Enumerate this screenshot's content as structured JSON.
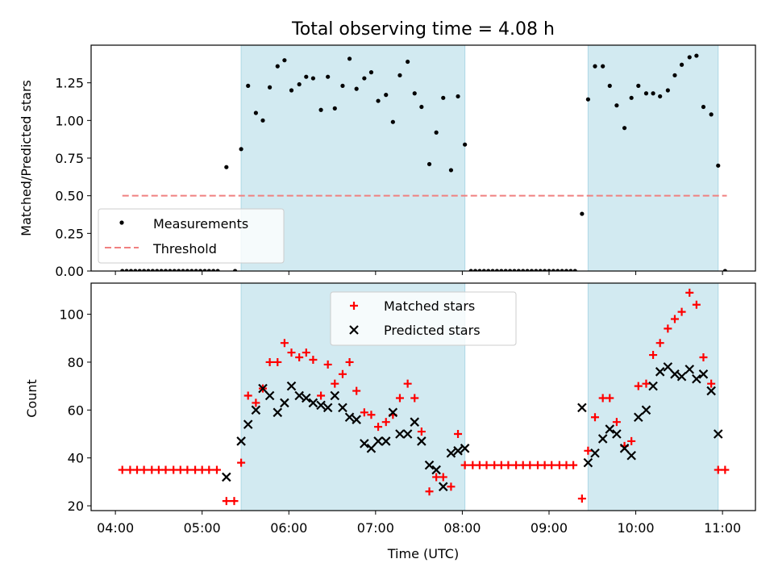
{
  "figure": {
    "title": "Total observing time = 4.08 h",
    "xlabel": "Time (UTC)",
    "x_ticks": [
      "04:00",
      "05:00",
      "06:00",
      "07:00",
      "08:00",
      "09:00",
      "10:00",
      "11:00"
    ],
    "shaded_color": "#add8e6"
  },
  "chart_data": [
    {
      "type": "scatter",
      "name": "top-panel",
      "x_unit": "hours UTC",
      "xlim": [
        3.72,
        11.38
      ],
      "ylim": [
        0,
        1.5
      ],
      "ylabel": "Matched/Predicted stars",
      "y_ticks": [
        "0.00",
        "0.25",
        "0.50",
        "0.75",
        "1.00",
        "1.25"
      ],
      "y_tick_values": [
        0,
        0.25,
        0.5,
        0.75,
        1.0,
        1.25
      ],
      "shaded_intervals": [
        [
          5.45,
          8.03
        ],
        [
          9.45,
          10.95
        ]
      ],
      "threshold": {
        "label": "Threshold",
        "y": 0.5,
        "x_range": [
          4.08,
          11.05
        ],
        "color": "#f08080"
      },
      "legend": {
        "placement": "lower-left",
        "items": [
          "Measurements",
          "Threshold"
        ]
      },
      "series": [
        {
          "name": "Measurements",
          "color": "#000000",
          "points": [
            [
              4.08,
              0
            ],
            [
              4.13,
              0
            ],
            [
              4.18,
              0
            ],
            [
              4.23,
              0
            ],
            [
              4.28,
              0
            ],
            [
              4.33,
              0
            ],
            [
              4.38,
              0
            ],
            [
              4.43,
              0
            ],
            [
              4.48,
              0
            ],
            [
              4.53,
              0
            ],
            [
              4.58,
              0
            ],
            [
              4.63,
              0
            ],
            [
              4.68,
              0
            ],
            [
              4.73,
              0
            ],
            [
              4.78,
              0
            ],
            [
              4.83,
              0
            ],
            [
              4.88,
              0
            ],
            [
              4.93,
              0
            ],
            [
              4.98,
              0
            ],
            [
              5.03,
              0
            ],
            [
              5.08,
              0
            ],
            [
              5.13,
              0
            ],
            [
              5.18,
              0
            ],
            [
              5.28,
              0.69
            ],
            [
              5.38,
              0
            ],
            [
              5.45,
              0.81
            ],
            [
              5.53,
              1.23
            ],
            [
              5.62,
              1.05
            ],
            [
              5.7,
              1.0
            ],
            [
              5.78,
              1.22
            ],
            [
              5.87,
              1.36
            ],
            [
              5.95,
              1.4
            ],
            [
              6.03,
              1.2
            ],
            [
              6.12,
              1.24
            ],
            [
              6.2,
              1.29
            ],
            [
              6.28,
              1.28
            ],
            [
              6.37,
              1.07
            ],
            [
              6.45,
              1.29
            ],
            [
              6.53,
              1.08
            ],
            [
              6.62,
              1.23
            ],
            [
              6.7,
              1.41
            ],
            [
              6.78,
              1.21
            ],
            [
              6.87,
              1.28
            ],
            [
              6.95,
              1.32
            ],
            [
              7.03,
              1.13
            ],
            [
              7.12,
              1.17
            ],
            [
              7.2,
              0.99
            ],
            [
              7.28,
              1.3
            ],
            [
              7.37,
              1.39
            ],
            [
              7.45,
              1.18
            ],
            [
              7.53,
              1.09
            ],
            [
              7.62,
              0.71
            ],
            [
              7.7,
              0.92
            ],
            [
              7.78,
              1.15
            ],
            [
              7.87,
              0.67
            ],
            [
              7.95,
              1.16
            ],
            [
              8.03,
              0.84
            ],
            [
              8.1,
              0
            ],
            [
              8.15,
              0
            ],
            [
              8.2,
              0
            ],
            [
              8.25,
              0
            ],
            [
              8.3,
              0
            ],
            [
              8.35,
              0
            ],
            [
              8.4,
              0
            ],
            [
              8.45,
              0
            ],
            [
              8.5,
              0
            ],
            [
              8.55,
              0
            ],
            [
              8.6,
              0
            ],
            [
              8.65,
              0
            ],
            [
              8.7,
              0
            ],
            [
              8.75,
              0
            ],
            [
              8.8,
              0
            ],
            [
              8.85,
              0
            ],
            [
              8.9,
              0
            ],
            [
              8.95,
              0
            ],
            [
              9.0,
              0
            ],
            [
              9.05,
              0
            ],
            [
              9.1,
              0
            ],
            [
              9.15,
              0
            ],
            [
              9.2,
              0
            ],
            [
              9.25,
              0
            ],
            [
              9.3,
              0
            ],
            [
              9.38,
              0.38
            ],
            [
              9.45,
              1.14
            ],
            [
              9.53,
              1.36
            ],
            [
              9.62,
              1.36
            ],
            [
              9.7,
              1.23
            ],
            [
              9.78,
              1.1
            ],
            [
              9.87,
              0.95
            ],
            [
              9.95,
              1.15
            ],
            [
              10.03,
              1.23
            ],
            [
              10.12,
              1.18
            ],
            [
              10.2,
              1.18
            ],
            [
              10.28,
              1.16
            ],
            [
              10.37,
              1.2
            ],
            [
              10.45,
              1.3
            ],
            [
              10.53,
              1.37
            ],
            [
              10.62,
              1.42
            ],
            [
              10.7,
              1.43
            ],
            [
              10.78,
              1.09
            ],
            [
              10.87,
              1.04
            ],
            [
              10.95,
              0.7
            ],
            [
              11.03,
              0
            ]
          ]
        }
      ]
    },
    {
      "type": "scatter",
      "name": "bottom-panel",
      "x_unit": "hours UTC",
      "xlim": [
        3.72,
        11.38
      ],
      "ylim": [
        18,
        113
      ],
      "ylabel": "Count",
      "y_ticks": [
        "20",
        "40",
        "60",
        "80",
        "100"
      ],
      "y_tick_values": [
        20,
        40,
        60,
        80,
        100
      ],
      "shaded_intervals": [
        [
          5.45,
          8.03
        ],
        [
          9.45,
          10.95
        ]
      ],
      "legend": {
        "placement": "upper-center",
        "items": [
          "Matched stars",
          "Predicted stars"
        ]
      },
      "series": [
        {
          "name": "Matched stars",
          "marker": "plus",
          "color": "#ff0000",
          "points": [
            [
              4.08,
              35
            ],
            [
              4.17,
              35
            ],
            [
              4.25,
              35
            ],
            [
              4.33,
              35
            ],
            [
              4.42,
              35
            ],
            [
              4.5,
              35
            ],
            [
              4.58,
              35
            ],
            [
              4.67,
              35
            ],
            [
              4.75,
              35
            ],
            [
              4.83,
              35
            ],
            [
              4.92,
              35
            ],
            [
              5.0,
              35
            ],
            [
              5.08,
              35
            ],
            [
              5.17,
              35
            ],
            [
              5.28,
              22
            ],
            [
              5.37,
              22
            ],
            [
              5.45,
              38
            ],
            [
              5.53,
              66
            ],
            [
              5.62,
              63
            ],
            [
              5.7,
              69
            ],
            [
              5.78,
              80
            ],
            [
              5.87,
              80
            ],
            [
              5.95,
              88
            ],
            [
              6.03,
              84
            ],
            [
              6.12,
              82
            ],
            [
              6.2,
              84
            ],
            [
              6.28,
              81
            ],
            [
              6.37,
              66
            ],
            [
              6.45,
              79
            ],
            [
              6.53,
              71
            ],
            [
              6.62,
              75
            ],
            [
              6.7,
              80
            ],
            [
              6.78,
              68
            ],
            [
              6.87,
              59
            ],
            [
              6.95,
              58
            ],
            [
              7.03,
              53
            ],
            [
              7.12,
              55
            ],
            [
              7.2,
              58
            ],
            [
              7.28,
              65
            ],
            [
              7.37,
              71
            ],
            [
              7.45,
              65
            ],
            [
              7.53,
              51
            ],
            [
              7.62,
              26
            ],
            [
              7.7,
              32
            ],
            [
              7.78,
              32
            ],
            [
              7.87,
              28
            ],
            [
              7.95,
              50
            ],
            [
              8.03,
              37
            ],
            [
              8.12,
              37
            ],
            [
              8.2,
              37
            ],
            [
              8.28,
              37
            ],
            [
              8.37,
              37
            ],
            [
              8.45,
              37
            ],
            [
              8.53,
              37
            ],
            [
              8.62,
              37
            ],
            [
              8.7,
              37
            ],
            [
              8.78,
              37
            ],
            [
              8.87,
              37
            ],
            [
              8.95,
              37
            ],
            [
              9.03,
              37
            ],
            [
              9.12,
              37
            ],
            [
              9.2,
              37
            ],
            [
              9.28,
              37
            ],
            [
              9.38,
              23
            ],
            [
              9.45,
              43
            ],
            [
              9.53,
              57
            ],
            [
              9.62,
              65
            ],
            [
              9.7,
              65
            ],
            [
              9.78,
              55
            ],
            [
              9.87,
              45
            ],
            [
              9.95,
              47
            ],
            [
              10.03,
              70
            ],
            [
              10.12,
              71
            ],
            [
              10.2,
              83
            ],
            [
              10.28,
              88
            ],
            [
              10.37,
              94
            ],
            [
              10.45,
              98
            ],
            [
              10.53,
              101
            ],
            [
              10.62,
              109
            ],
            [
              10.7,
              104
            ],
            [
              10.78,
              82
            ],
            [
              10.87,
              71
            ],
            [
              10.95,
              35
            ],
            [
              11.03,
              35
            ]
          ]
        },
        {
          "name": "Predicted stars",
          "marker": "x",
          "color": "#000000",
          "points": [
            [
              5.28,
              32
            ],
            [
              5.45,
              47
            ],
            [
              5.53,
              54
            ],
            [
              5.62,
              60
            ],
            [
              5.7,
              69
            ],
            [
              5.78,
              66
            ],
            [
              5.87,
              59
            ],
            [
              5.95,
              63
            ],
            [
              6.03,
              70
            ],
            [
              6.12,
              66
            ],
            [
              6.2,
              65
            ],
            [
              6.28,
              63
            ],
            [
              6.37,
              62
            ],
            [
              6.45,
              61
            ],
            [
              6.53,
              66
            ],
            [
              6.62,
              61
            ],
            [
              6.7,
              57
            ],
            [
              6.78,
              56
            ],
            [
              6.87,
              46
            ],
            [
              6.95,
              44
            ],
            [
              7.03,
              47
            ],
            [
              7.12,
              47
            ],
            [
              7.2,
              59
            ],
            [
              7.28,
              50
            ],
            [
              7.37,
              50
            ],
            [
              7.45,
              55
            ],
            [
              7.53,
              47
            ],
            [
              7.62,
              37
            ],
            [
              7.7,
              35
            ],
            [
              7.78,
              28
            ],
            [
              7.87,
              42
            ],
            [
              7.95,
              43
            ],
            [
              8.03,
              44
            ],
            [
              9.38,
              61
            ],
            [
              9.45,
              38
            ],
            [
              9.53,
              42
            ],
            [
              9.62,
              48
            ],
            [
              9.7,
              52
            ],
            [
              9.78,
              50
            ],
            [
              9.87,
              44
            ],
            [
              9.95,
              41
            ],
            [
              10.03,
              57
            ],
            [
              10.12,
              60
            ],
            [
              10.2,
              70
            ],
            [
              10.28,
              76
            ],
            [
              10.37,
              78
            ],
            [
              10.45,
              75
            ],
            [
              10.53,
              74
            ],
            [
              10.62,
              77
            ],
            [
              10.7,
              73
            ],
            [
              10.78,
              75
            ],
            [
              10.87,
              68
            ],
            [
              10.95,
              50
            ]
          ]
        }
      ]
    }
  ]
}
